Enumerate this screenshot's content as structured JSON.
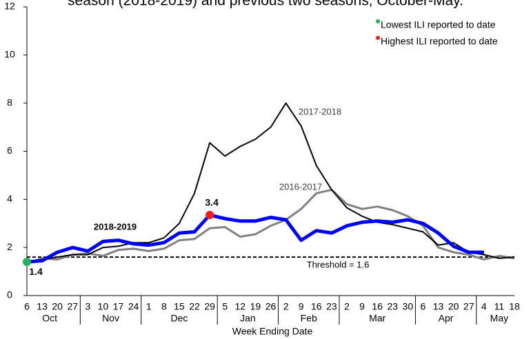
{
  "chart_data": {
    "type": "line",
    "title": "season (2018-2019) and previous two seasons, October-May.",
    "x_label": "Week Ending Date",
    "categories": [
      "6",
      "13",
      "20",
      "27",
      "3",
      "10",
      "17",
      "24",
      "1",
      "8",
      "15",
      "22",
      "29",
      "5",
      "12",
      "19",
      "26",
      "2",
      "9",
      "16",
      "23",
      "2",
      "9",
      "16",
      "23",
      "30",
      "6",
      "13",
      "20",
      "27",
      "4",
      "11",
      "18"
    ],
    "month_groups": [
      {
        "label": "Oct",
        "weeks": 4
      },
      {
        "label": "Nov",
        "weeks": 4
      },
      {
        "label": "Dec",
        "weeks": 5
      },
      {
        "label": "Jan",
        "weeks": 4
      },
      {
        "label": "Feb",
        "weeks": 4
      },
      {
        "label": "Mar",
        "weeks": 5
      },
      {
        "label": "Apr",
        "weeks": 4
      },
      {
        "label": "May",
        "weeks": 3
      }
    ],
    "ylim": [
      0,
      12
    ],
    "yticks": [
      0,
      2,
      4,
      6,
      8,
      10,
      12
    ],
    "grid": false,
    "series": [
      {
        "name": "2018-2019",
        "color": "#0000ff",
        "values": [
          1.4,
          1.45,
          1.8,
          2.0,
          1.85,
          2.25,
          2.3,
          2.15,
          2.1,
          2.2,
          2.6,
          2.65,
          3.35,
          3.2,
          3.1,
          3.1,
          3.25,
          3.15,
          2.3,
          2.7,
          2.6,
          2.9,
          3.05,
          3.1,
          3.05,
          3.15,
          3.0,
          2.6,
          2.05,
          1.8,
          1.8,
          null,
          null
        ],
        "value_labels": [
          "1.4",
          null,
          null,
          null,
          null,
          null,
          null,
          null,
          null,
          null,
          null,
          null,
          "3.4",
          null,
          null,
          null,
          null,
          null,
          null,
          null,
          null,
          null,
          null,
          null,
          null,
          null,
          null,
          null,
          null,
          null,
          null,
          null,
          null
        ],
        "marker_colors": [
          "#1db35b",
          null,
          null,
          null,
          null,
          null,
          null,
          null,
          null,
          null,
          null,
          null,
          "#ff1a1a",
          null,
          null,
          null,
          null,
          null,
          null,
          null,
          null,
          null,
          null,
          null,
          null,
          null,
          null,
          null,
          null,
          null,
          null,
          null,
          null
        ]
      },
      {
        "name": "2017-2018",
        "color": "#000000",
        "values": [
          1.4,
          1.5,
          1.6,
          1.7,
          1.7,
          2.0,
          2.05,
          2.2,
          2.2,
          2.4,
          3.0,
          4.25,
          6.35,
          5.8,
          6.2,
          6.5,
          7.0,
          8.0,
          7.05,
          5.4,
          4.4,
          3.65,
          3.3,
          3.05,
          2.95,
          2.8,
          2.65,
          2.1,
          2.2,
          1.8,
          1.7,
          1.55,
          1.6
        ]
      },
      {
        "name": "2016-2017",
        "color": "#808080",
        "values": [
          1.35,
          1.55,
          1.5,
          1.7,
          1.75,
          1.65,
          1.9,
          1.95,
          1.85,
          1.95,
          2.3,
          2.35,
          2.8,
          2.85,
          2.45,
          2.55,
          2.9,
          3.15,
          3.6,
          4.25,
          4.4,
          3.8,
          3.6,
          3.7,
          3.55,
          3.3,
          2.9,
          2.0,
          1.8,
          1.7,
          1.5,
          1.65,
          1.55
        ]
      }
    ],
    "threshold": {
      "value": 1.6,
      "label": "Threshold = 1.6"
    },
    "legend": [
      {
        "label": "Lowest ILI reported to date",
        "color": "#1db35b"
      },
      {
        "label": "Highest ILI reported to date",
        "color": "#ff1a1a"
      }
    ]
  }
}
